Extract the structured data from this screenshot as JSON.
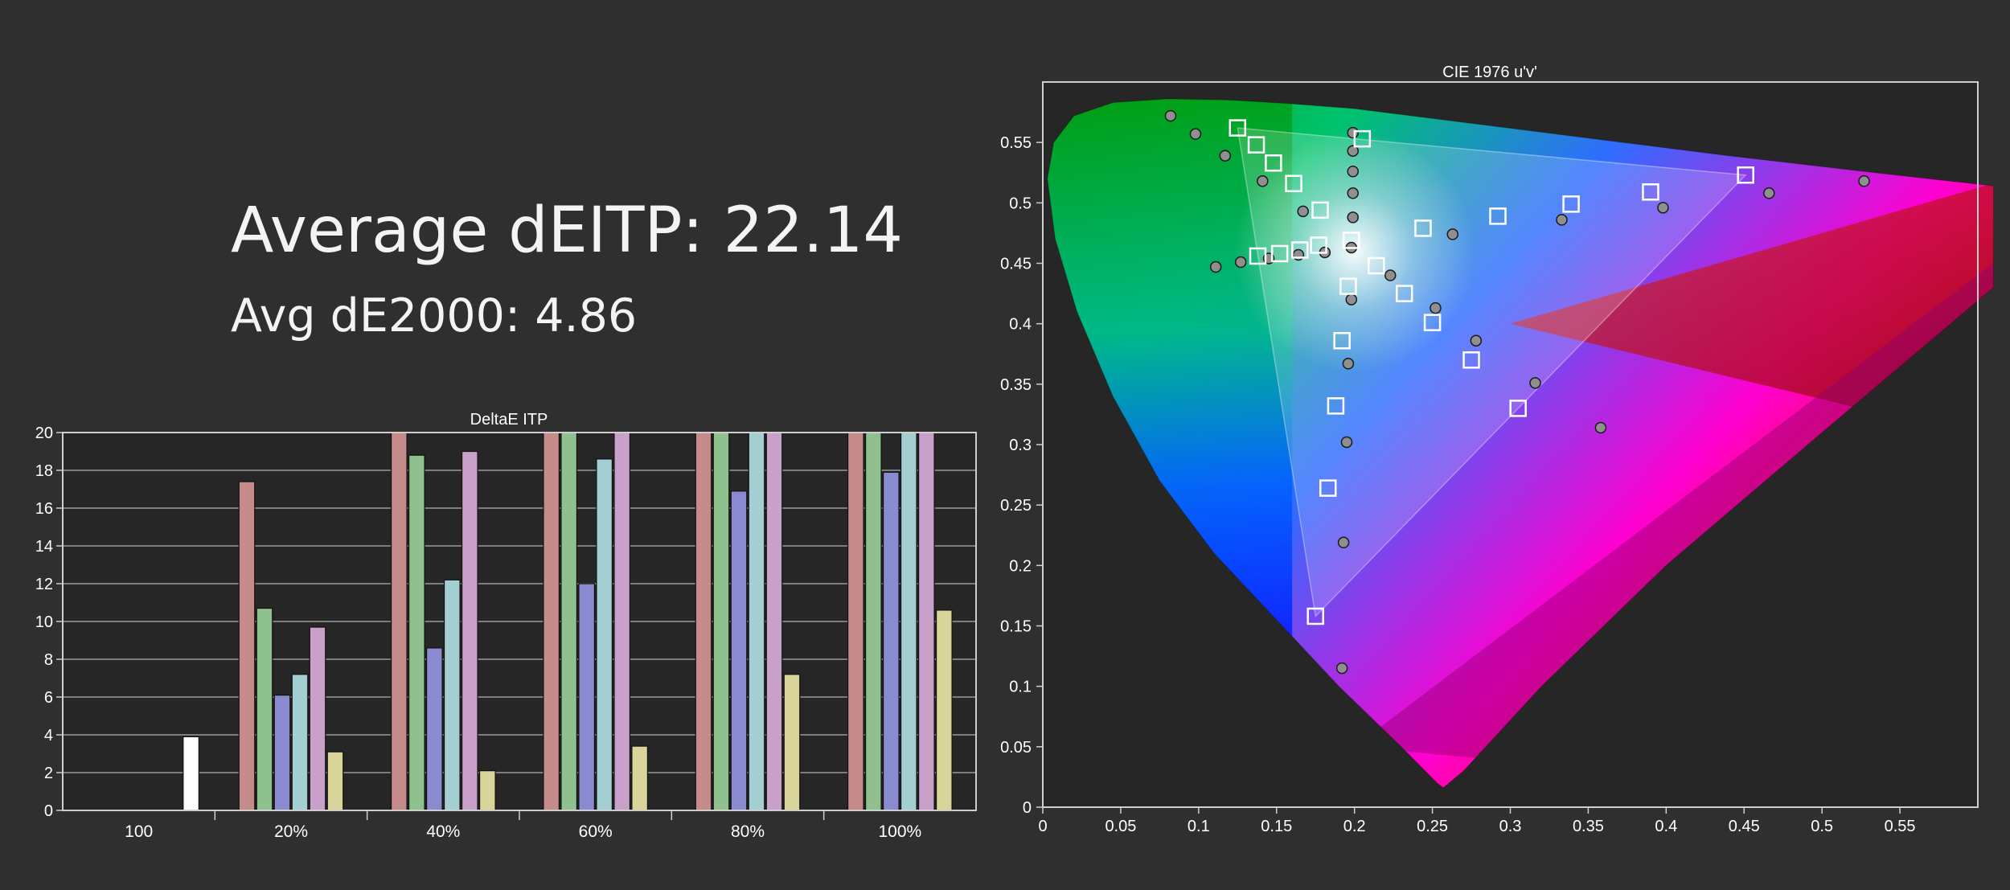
{
  "summary": {
    "average_deitp": "Average dEITP: 22.14",
    "avg_de2000": "Avg dE2000: 4.86"
  },
  "colors": {
    "background": "#2f2f2f",
    "plot_background": "#262626",
    "grid": "#9a9a9a",
    "axis": "#cfcfcf"
  },
  "chart_data": [
    {
      "type": "bar",
      "title": "DeltaE ITP",
      "xlabel": "",
      "ylabel": "",
      "ylim": [
        0,
        20
      ],
      "yticks": [
        "0",
        "2",
        "4",
        "6",
        "8",
        "10",
        "12",
        "14",
        "16",
        "18",
        "20"
      ],
      "grid": true,
      "categories": [
        "100",
        "20%",
        "40%",
        "60%",
        "80%",
        "100%"
      ],
      "series": [
        {
          "color": "#ffffff",
          "values": [
            3.9,
            null,
            null,
            null,
            null,
            null
          ]
        },
        {
          "color": "#c58a8a",
          "values": [
            null,
            17.4,
            20,
            20,
            20,
            20
          ]
        },
        {
          "color": "#8fc18f",
          "values": [
            null,
            10.7,
            18.8,
            20,
            20,
            20
          ]
        },
        {
          "color": "#8a8ad0",
          "values": [
            null,
            6.1,
            8.6,
            12.0,
            16.9,
            17.9
          ]
        },
        {
          "color": "#a3cfd3",
          "values": [
            null,
            7.2,
            12.2,
            18.6,
            20,
            20
          ]
        },
        {
          "color": "#c9a0c9",
          "values": [
            null,
            9.7,
            19.0,
            20,
            20,
            20
          ]
        },
        {
          "color": "#d9d59a",
          "values": [
            null,
            3.1,
            2.1,
            3.4,
            7.2,
            10.6
          ]
        }
      ]
    },
    {
      "type": "scatter",
      "title": "CIE 1976 u'v'",
      "xlabel": "",
      "ylabel": "",
      "xlim": [
        0,
        0.6
      ],
      "ylim": [
        0,
        0.6
      ],
      "xticks": [
        "0",
        "0.05",
        "0.1",
        "0.15",
        "0.2",
        "0.25",
        "0.3",
        "0.35",
        "0.4",
        "0.45",
        "0.5",
        "0.55"
      ],
      "yticks": [
        "0",
        "0.05",
        "0.1",
        "0.15",
        "0.2",
        "0.25",
        "0.3",
        "0.35",
        "0.4",
        "0.45",
        "0.5",
        "0.55"
      ],
      "grid": false,
      "gamut_triangle": [
        [
          0.125,
          0.562
        ],
        [
          0.175,
          0.158
        ],
        [
          0.451,
          0.523
        ]
      ],
      "targets": [
        [
          0.125,
          0.562
        ],
        [
          0.137,
          0.548
        ],
        [
          0.148,
          0.533
        ],
        [
          0.161,
          0.516
        ],
        [
          0.178,
          0.494
        ],
        [
          0.138,
          0.456
        ],
        [
          0.152,
          0.458
        ],
        [
          0.165,
          0.461
        ],
        [
          0.177,
          0.465
        ],
        [
          0.198,
          0.469
        ],
        [
          0.214,
          0.448
        ],
        [
          0.232,
          0.425
        ],
        [
          0.25,
          0.401
        ],
        [
          0.275,
          0.37
        ],
        [
          0.305,
          0.33
        ],
        [
          0.244,
          0.479
        ],
        [
          0.292,
          0.489
        ],
        [
          0.339,
          0.499
        ],
        [
          0.39,
          0.509
        ],
        [
          0.451,
          0.523
        ],
        [
          0.196,
          0.431
        ],
        [
          0.192,
          0.386
        ],
        [
          0.188,
          0.332
        ],
        [
          0.183,
          0.264
        ],
        [
          0.175,
          0.158
        ],
        [
          0.205,
          0.553
        ]
      ],
      "measured": [
        [
          0.082,
          0.572
        ],
        [
          0.098,
          0.557
        ],
        [
          0.117,
          0.539
        ],
        [
          0.141,
          0.518
        ],
        [
          0.167,
          0.493
        ],
        [
          0.111,
          0.447
        ],
        [
          0.127,
          0.451
        ],
        [
          0.145,
          0.454
        ],
        [
          0.164,
          0.457
        ],
        [
          0.181,
          0.459
        ],
        [
          0.198,
          0.463
        ],
        [
          0.223,
          0.44
        ],
        [
          0.252,
          0.413
        ],
        [
          0.278,
          0.386
        ],
        [
          0.316,
          0.351
        ],
        [
          0.358,
          0.314
        ],
        [
          0.263,
          0.474
        ],
        [
          0.333,
          0.486
        ],
        [
          0.398,
          0.496
        ],
        [
          0.466,
          0.508
        ],
        [
          0.527,
          0.518
        ],
        [
          0.198,
          0.42
        ],
        [
          0.196,
          0.367
        ],
        [
          0.195,
          0.302
        ],
        [
          0.193,
          0.219
        ],
        [
          0.192,
          0.115
        ],
        [
          0.199,
          0.558
        ],
        [
          0.199,
          0.543
        ],
        [
          0.199,
          0.526
        ],
        [
          0.199,
          0.508
        ],
        [
          0.199,
          0.488
        ]
      ]
    }
  ]
}
